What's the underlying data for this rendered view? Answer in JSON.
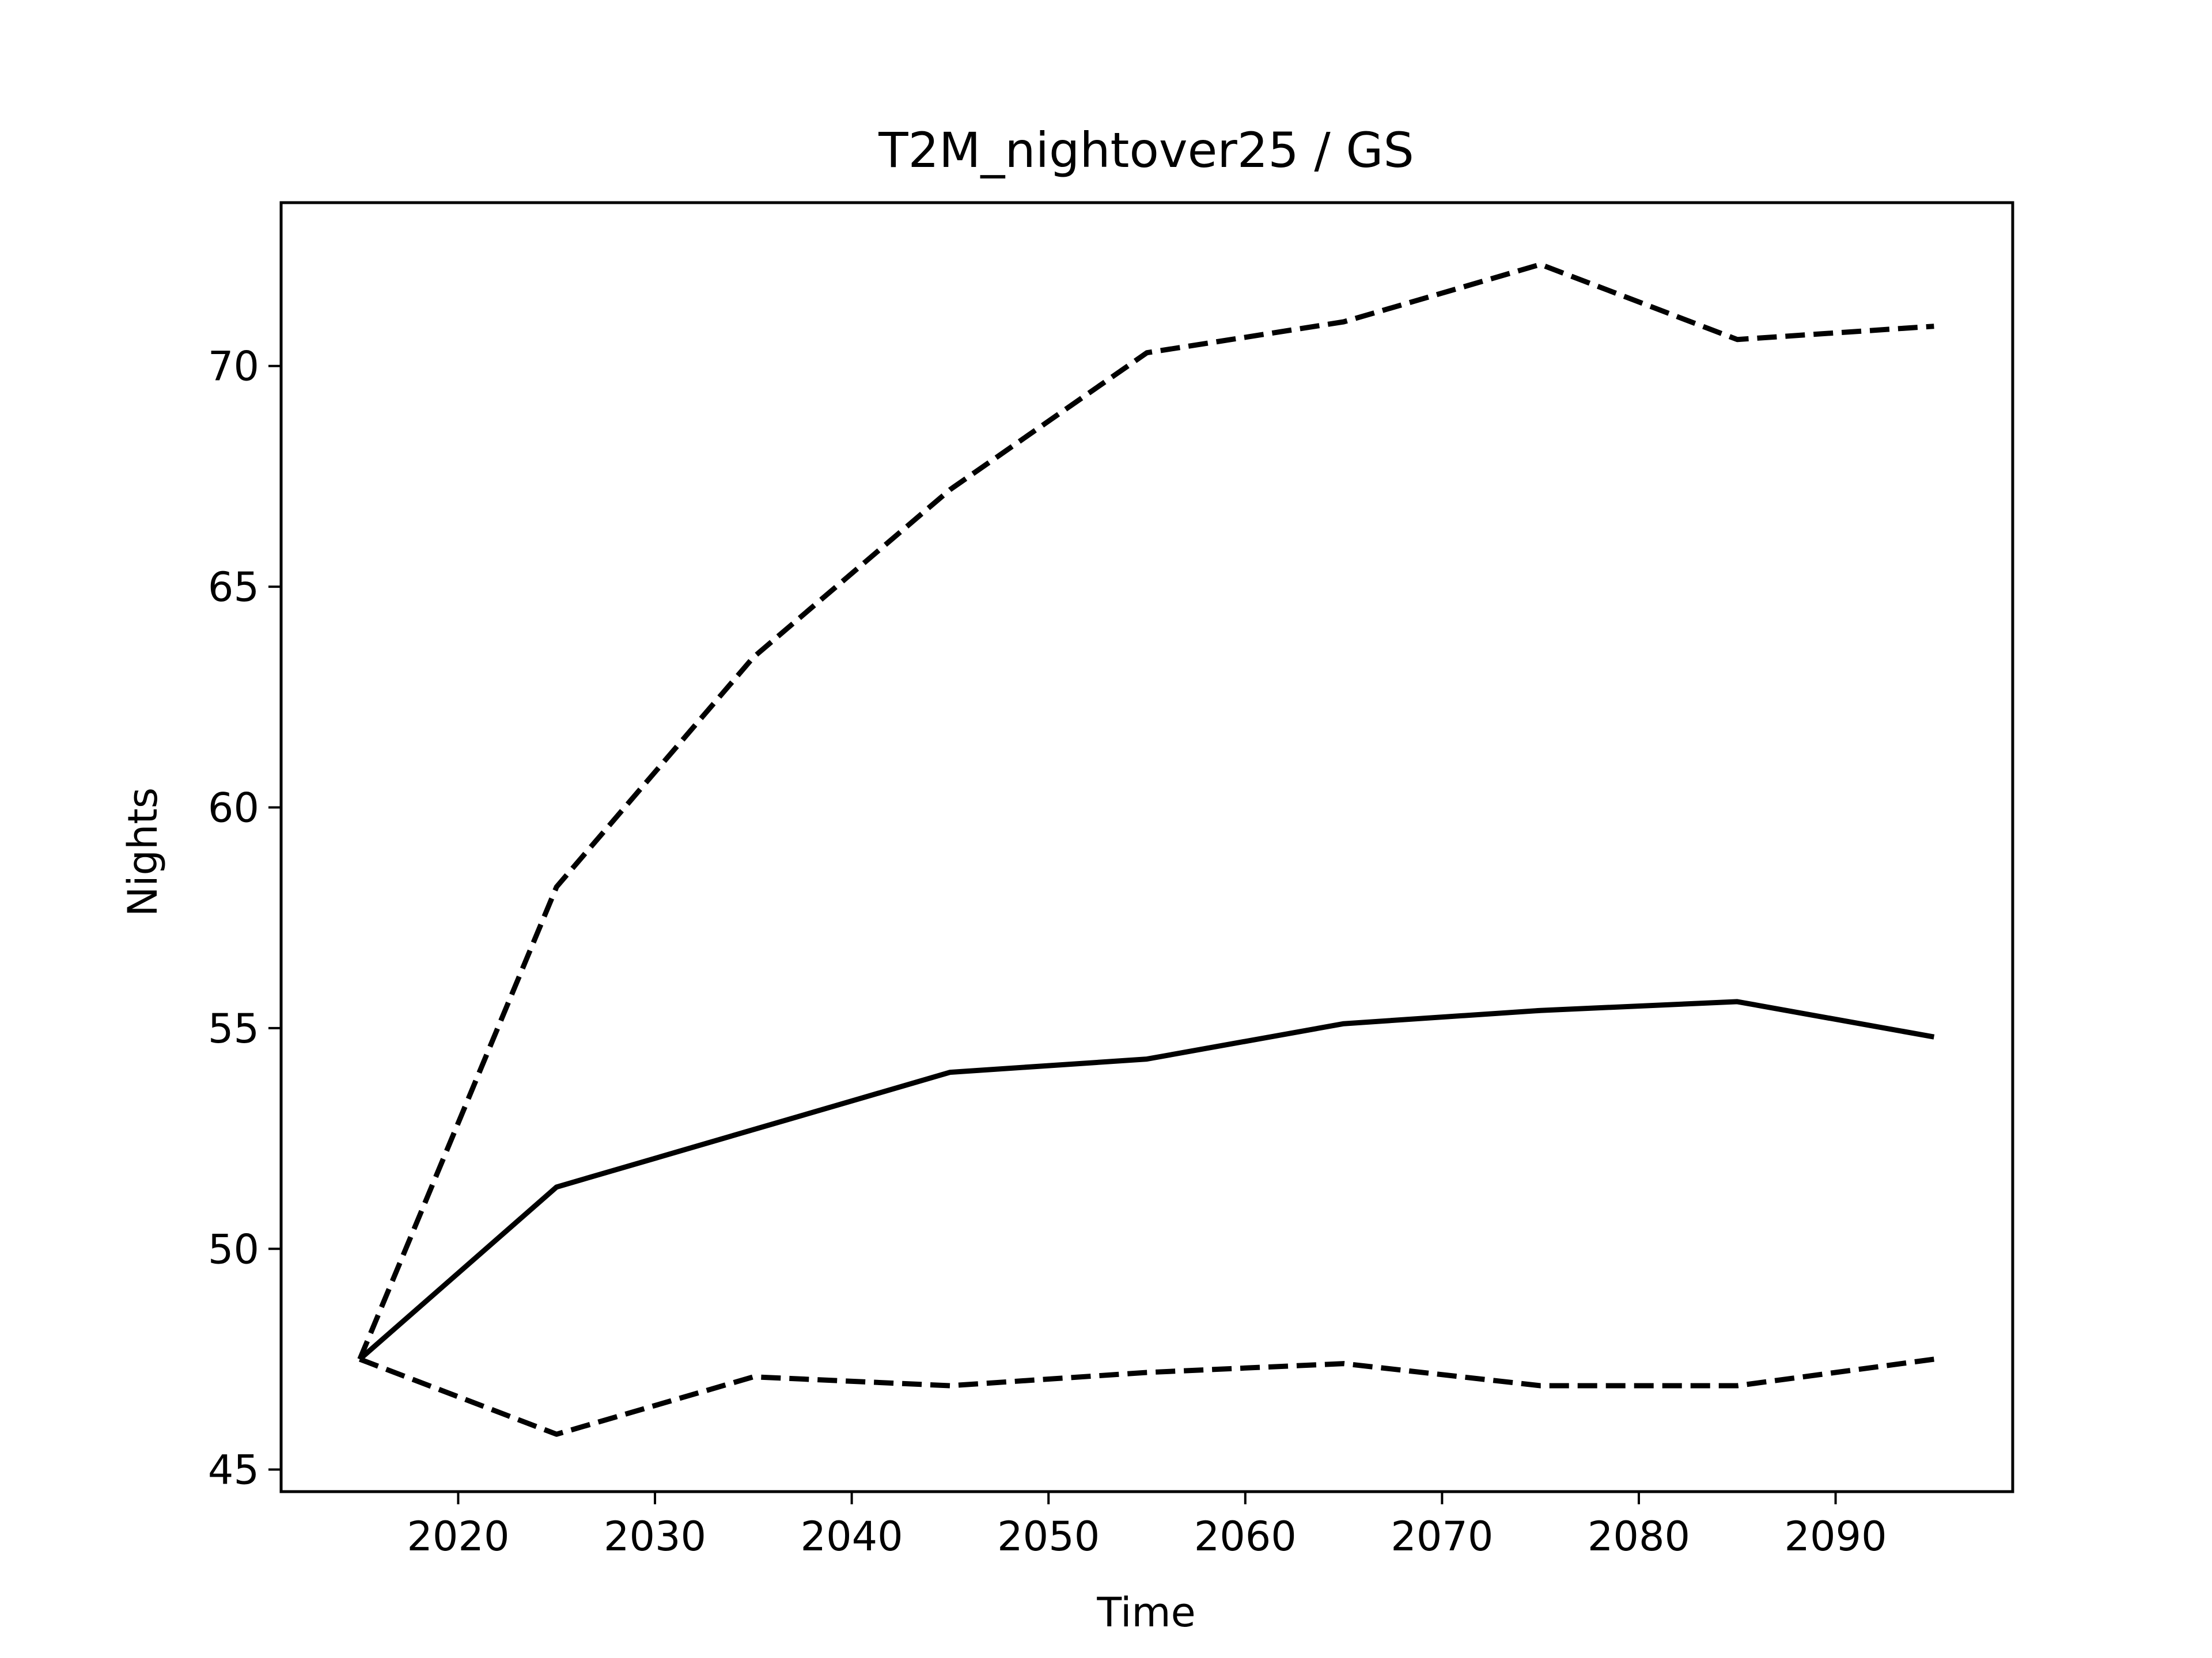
{
  "chart_data": {
    "type": "line",
    "title": "T2M_nightover25 / GS",
    "xlabel": "Time",
    "ylabel": "Nights",
    "xlim": [
      2011,
      2099
    ],
    "ylim": [
      44.5,
      73.7
    ],
    "xticks": [
      2020,
      2030,
      2040,
      2050,
      2060,
      2070,
      2080,
      2090
    ],
    "yticks": [
      45,
      50,
      55,
      60,
      65,
      70
    ],
    "grid": false,
    "legend": false,
    "x": [
      2015,
      2025,
      2035,
      2045,
      2055,
      2065,
      2075,
      2085,
      2095
    ],
    "series": [
      {
        "style": "solid",
        "color": "#000000",
        "values": [
          47.5,
          51.4,
          52.7,
          54.0,
          54.3,
          55.1,
          55.4,
          55.6,
          54.8
        ]
      },
      {
        "style": "dashed",
        "color": "#000000",
        "values": [
          47.5,
          58.2,
          63.4,
          67.2,
          70.3,
          71.0,
          72.3,
          70.6,
          70.9
        ]
      },
      {
        "style": "dashed",
        "color": "#000000",
        "values": [
          47.5,
          45.8,
          47.1,
          46.9,
          47.2,
          47.4,
          46.9,
          46.9,
          47.5
        ]
      }
    ]
  }
}
